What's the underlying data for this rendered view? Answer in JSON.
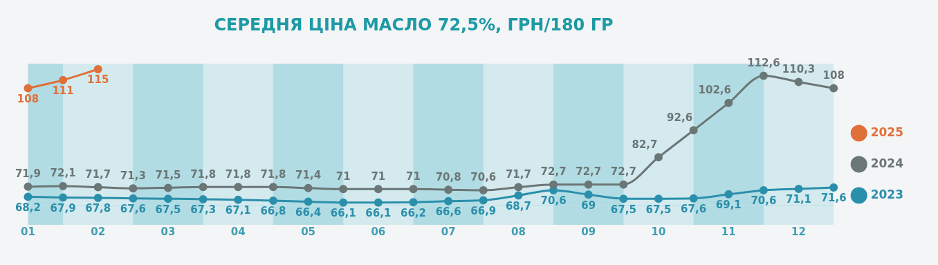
{
  "chart_data": {
    "type": "line",
    "title": "СЕРЕДНЯ ЦІНА МАСЛО 72,5%, ГРН/180 ГР",
    "x": [
      1,
      1.5,
      2,
      2.5,
      3,
      3.5,
      4,
      4.5,
      5,
      5.5,
      6,
      6.5,
      7,
      7.5,
      8,
      8.5,
      9,
      9.5,
      10,
      10.5,
      11,
      11.5,
      12,
      12.5
    ],
    "series": [
      {
        "name": "2025",
        "color": "#e0703a",
        "x": [
          1,
          1.5,
          2
        ],
        "values": [
          108,
          111,
          115
        ],
        "value_labels": [
          "108",
          "111",
          "115"
        ]
      },
      {
        "name": "2024",
        "color": "#6b7676",
        "values": [
          71.9,
          72.1,
          71.7,
          71.3,
          71.5,
          71.8,
          71.8,
          71.8,
          71.4,
          71,
          71,
          71,
          70.8,
          70.6,
          71.7,
          72.7,
          72.7,
          72.7,
          82.7,
          92.6,
          102.6,
          112.6,
          110.3,
          108
        ],
        "value_labels": [
          "71,9",
          "72,1",
          "71,7",
          "71,3",
          "71,5",
          "71,8",
          "71,8",
          "71,8",
          "71,4",
          "71",
          "71",
          "71",
          "70,8",
          "70,6",
          "71,7",
          "72,7",
          "72,7",
          "72,7",
          "82,7",
          "92,6",
          "102,6",
          "112,6",
          "110,3",
          "108"
        ]
      },
      {
        "name": "2023",
        "color": "#2a8fab",
        "values": [
          68.2,
          67.9,
          67.8,
          67.6,
          67.5,
          67.3,
          67.1,
          66.8,
          66.4,
          66.1,
          66.1,
          66.2,
          66.6,
          66.9,
          68.7,
          70.6,
          69,
          67.5,
          67.5,
          67.6,
          69.1,
          70.6,
          71.1,
          71.6
        ],
        "value_labels": [
          "68,2",
          "67,9",
          "67,8",
          "67,6",
          "67,5",
          "67,3",
          "67,1",
          "66,8",
          "66,4",
          "66,1",
          "66,1",
          "66,2",
          "66,6",
          "66,9",
          "68,7",
          "70,6",
          "69",
          "67,5",
          "67,5",
          "67,6",
          "69,1",
          "70,6",
          "71,1",
          "71,6"
        ]
      }
    ],
    "xticks": [
      {
        "value": 1,
        "label": "01"
      },
      {
        "value": 2,
        "label": "02"
      },
      {
        "value": 3,
        "label": "03"
      },
      {
        "value": 4,
        "label": "04"
      },
      {
        "value": 5,
        "label": "05"
      },
      {
        "value": 6,
        "label": "06"
      },
      {
        "value": 7,
        "label": "07"
      },
      {
        "value": 8,
        "label": "08"
      },
      {
        "value": 9,
        "label": "09"
      },
      {
        "value": 10,
        "label": "10"
      },
      {
        "value": 11,
        "label": "11"
      },
      {
        "value": 12,
        "label": "12"
      }
    ],
    "xlim": [
      1,
      12.5
    ],
    "tick_labels": "x",
    "bands": [
      {
        "axis": "x",
        "from": 1,
        "to": 1.5,
        "color": "#b2dce3"
      },
      {
        "axis": "x",
        "from": 2.5,
        "to": 3.5,
        "color": "#b2dce3"
      },
      {
        "axis": "x",
        "from": 4.5,
        "to": 5.5,
        "color": "#b2dce3"
      },
      {
        "axis": "x",
        "from": 6.5,
        "to": 7.5,
        "color": "#b2dce3"
      },
      {
        "axis": "x",
        "from": 8.5,
        "to": 9.5,
        "color": "#b2dce3"
      },
      {
        "axis": "x",
        "from": 10.5,
        "to": 11.5,
        "color": "#b2dce3"
      }
    ],
    "legend": "right",
    "grid": false,
    "marker": "circle",
    "line_style": "solid"
  }
}
